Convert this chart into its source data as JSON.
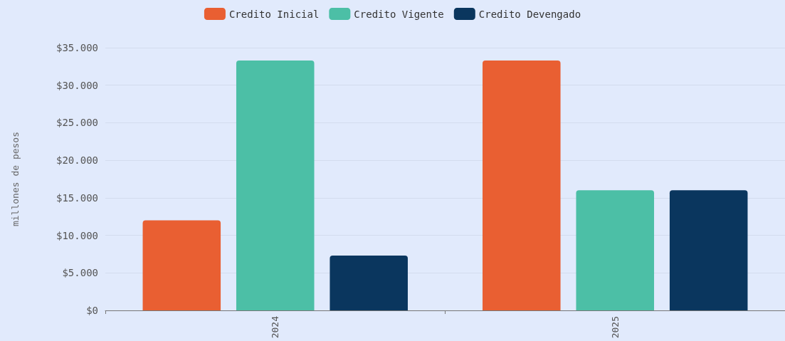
{
  "chart_data": {
    "type": "bar",
    "ylabel": "millones de pesos",
    "categories": [
      "2024",
      "2025"
    ],
    "series": [
      {
        "name": "Credito Inicial",
        "color": "#e95f32",
        "values": [
          12000,
          33300
        ]
      },
      {
        "name": "Credito Vigente",
        "color": "#4cbfa6",
        "values": [
          33300,
          16000
        ]
      },
      {
        "name": "Credito Devengado",
        "color": "#0a365e",
        "values": [
          7300,
          16000
        ]
      }
    ],
    "ylim": [
      0,
      35000
    ],
    "yticks": [
      {
        "value": 0,
        "label": "$0"
      },
      {
        "value": 5000,
        "label": "$5.000"
      },
      {
        "value": 10000,
        "label": "$10.000"
      },
      {
        "value": 15000,
        "label": "$15.000"
      },
      {
        "value": 20000,
        "label": "$20.000"
      },
      {
        "value": 25000,
        "label": "$25.000"
      },
      {
        "value": 30000,
        "label": "$30.000"
      },
      {
        "value": 35000,
        "label": "$35.000"
      }
    ],
    "grid": "y",
    "legend": "top"
  }
}
